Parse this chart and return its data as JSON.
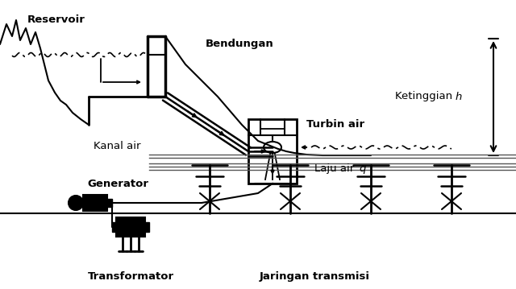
{
  "bg_color": "#ffffff",
  "line_color": "#000000",
  "labels": {
    "reservoir": "Reservoir",
    "bendungan": "Bendungan",
    "kanal_air": "Kanal air",
    "turbin_air": "Turbin air",
    "ketinggian": "Ketinggian ",
    "ketinggian_h": "h",
    "laju_air": "Laju air ",
    "laju_q": "q",
    "generator": "Generator",
    "transformator": "Transformator",
    "jaringan": "Jaringan transmisi"
  }
}
